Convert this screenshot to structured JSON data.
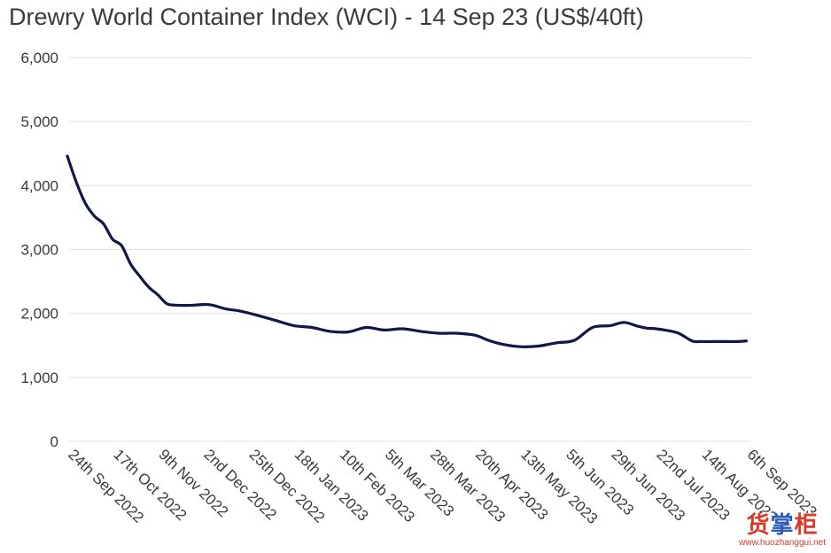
{
  "chart_data": {
    "type": "line",
    "title": "Drewry World Container Index (WCI) - 14 Sep 23 (US$/40ft)",
    "xlabel": "",
    "ylabel": "",
    "ylim": [
      0,
      6000
    ],
    "yticks": [
      "0",
      "1,000",
      "2,000",
      "3,000",
      "4,000",
      "5,000",
      "6,000"
    ],
    "grid": true,
    "legend": "none",
    "categories": [
      "24th Sep 2022",
      "17th Oct 2022",
      "9th Nov 2022",
      "2nd Dec 2022",
      "25th Dec 2022",
      "18th Jan 2023",
      "10th Feb 2023",
      "5th Mar 2023",
      "28th Mar 2023",
      "20th Apr 2023",
      "13th May 2023",
      "5th Jun 2023",
      "29th Jun 2023",
      "22nd Jul 2023",
      "14th Aug 2023",
      "6th Sep 2023"
    ],
    "series": [
      {
        "color": "#111845",
        "x": [
          0,
          0.2,
          0.4,
          0.6,
          0.8,
          1.0,
          1.2,
          1.4,
          1.6,
          1.8,
          2.0,
          2.2,
          2.4,
          2.6,
          2.8,
          3.0,
          3.2,
          3.5,
          3.8,
          4.2,
          4.6,
          5.0,
          5.4,
          5.8,
          6.2,
          6.6,
          7.0,
          7.4,
          7.8,
          8.2,
          8.6,
          9.0,
          9.3,
          9.6,
          10.0,
          10.4,
          10.8,
          11.2,
          11.6,
          12.0,
          12.3,
          12.6,
          12.8,
          13.0,
          13.2,
          13.5,
          13.8,
          14.0,
          14.3,
          14.6,
          14.8,
          15.0
        ],
        "y": [
          4460,
          4050,
          3720,
          3520,
          3400,
          3160,
          3060,
          2770,
          2580,
          2410,
          2290,
          2150,
          2130,
          2125,
          2130,
          2140,
          2130,
          2070,
          2040,
          1970,
          1890,
          1810,
          1780,
          1720,
          1710,
          1780,
          1740,
          1760,
          1720,
          1690,
          1690,
          1660,
          1580,
          1520,
          1480,
          1490,
          1540,
          1580,
          1780,
          1810,
          1860,
          1800,
          1770,
          1760,
          1740,
          1690,
          1570,
          1560,
          1560,
          1560,
          1560,
          1570
        ]
      }
    ]
  },
  "watermark": {
    "logo_left": "货",
    "logo_mid": "掌",
    "logo_right": "柜",
    "url": "www.huozhanggui.net"
  }
}
